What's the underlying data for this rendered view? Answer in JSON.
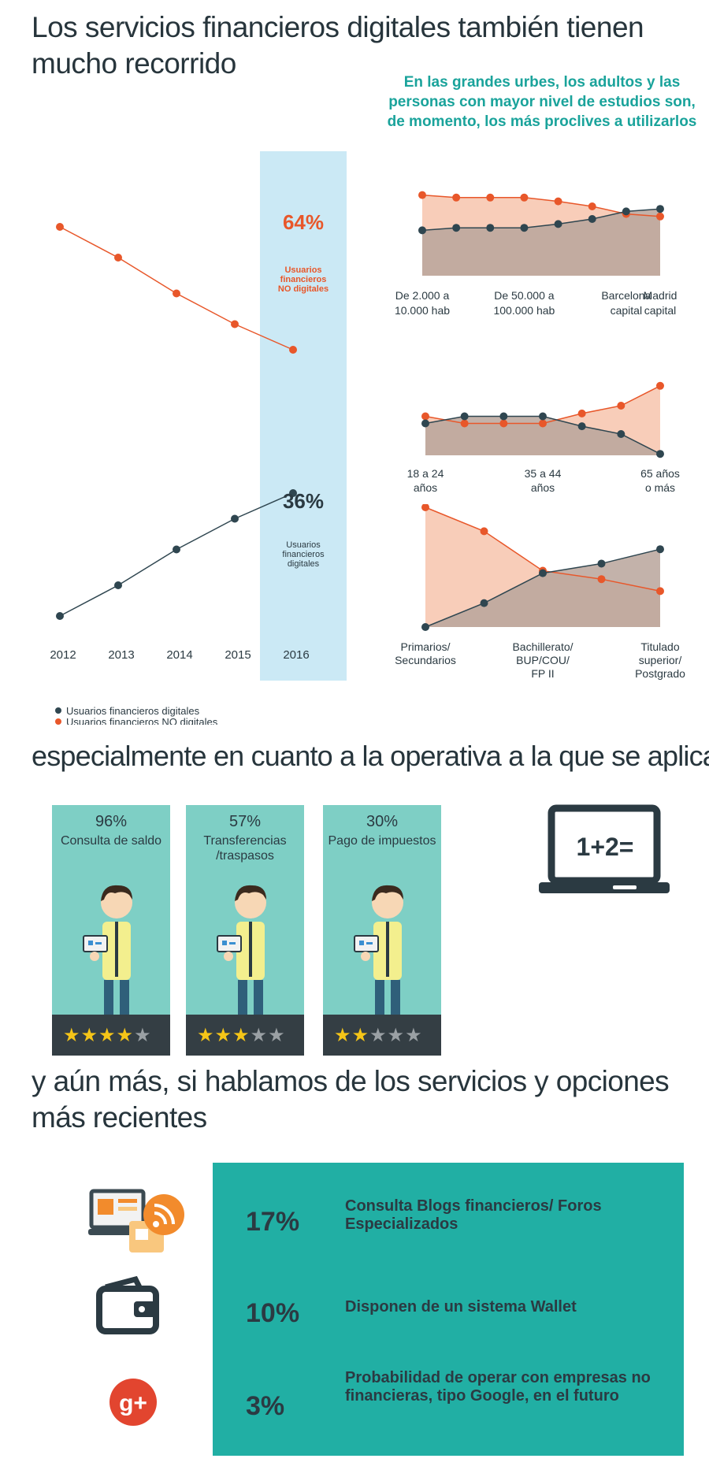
{
  "title": "Los servicios financieros digitales también tienen mucho recorrido",
  "subhead": "En las grandes urbes, los adultos y las personas con mayor nivel de estudios son, de momento, los más proclives a utilizarlos",
  "colors": {
    "digital": "#2f4650",
    "non_digital": "#e8572a",
    "highlight": "#cbe9f5",
    "teal": "#21afa4",
    "card": "#7ecfc5"
  },
  "chart_data": [
    {
      "type": "line",
      "categories": [
        "2012",
        "2013",
        "2014",
        "2015",
        "2016"
      ],
      "ylim": [
        0,
        100
      ],
      "series": [
        {
          "name": "Usuarios financieros digitales",
          "values": [
            12,
            18,
            25,
            31,
            36
          ]
        },
        {
          "name": "Usuarios financieros NO digitales",
          "values": [
            88,
            82,
            75,
            69,
            64
          ]
        }
      ],
      "annotations": [
        {
          "value": "64%",
          "label": "Usuarios financieros NO digitales"
        },
        {
          "value": "36%",
          "label": "Usuarios financieros digitales"
        }
      ],
      "legend": [
        "Usuarios financieros digitales",
        "Usuarios financieros NO digitales"
      ]
    },
    {
      "type": "area",
      "x_labels": [
        "De 2.000 a 10.000 hab",
        "De 50.000 a 100.000 hab",
        "Barcelona capital",
        "Madrid capital"
      ],
      "x_label_positions": [
        0,
        3,
        6,
        7
      ],
      "ylim": [
        0,
        100
      ],
      "series": [
        {
          "name": "Usuarios financieros digitales",
          "values": [
            36,
            38,
            38,
            38,
            41,
            45,
            51,
            53
          ]
        },
        {
          "name": "Usuarios financieros NO digitales",
          "values": [
            64,
            62,
            62,
            62,
            59,
            55,
            49,
            47
          ]
        }
      ]
    },
    {
      "type": "area",
      "x_labels": [
        "18 a 24 años",
        "35 a 44 años",
        "65 años o más"
      ],
      "x_label_positions": [
        0,
        3,
        7
      ],
      "ylim": [
        0,
        100
      ],
      "series": [
        {
          "name": "Usuarios financieros digitales",
          "values": [
            45,
            55,
            55,
            55,
            41,
            30,
            2
          ]
        },
        {
          "name": "Usuarios financieros NO digitales",
          "values": [
            55,
            45,
            45,
            45,
            59,
            70,
            98
          ]
        }
      ]
    },
    {
      "type": "area",
      "x_labels": [
        "Primarios/ Secundarios",
        "Bachillerato/ BUP/COU/ FP II",
        "Titulado superior/ Postgrado"
      ],
      "x_label_positions": [
        0,
        2,
        4
      ],
      "ylim": [
        0,
        100
      ],
      "series": [
        {
          "name": "Usuarios financieros digitales",
          "values": [
            0,
            20,
            45,
            53,
            65
          ]
        },
        {
          "name": "Usuarios financieros NO digitales",
          "values": [
            100,
            80,
            47,
            40,
            30
          ]
        }
      ]
    }
  ],
  "section2": {
    "title": "especialmente en cuanto a la operativa a la que se aplican",
    "cards": [
      {
        "pct": "96%",
        "label": "Consulta de saldo",
        "stars": 4
      },
      {
        "pct": "57%",
        "label": "Transferencias /traspasos",
        "stars": 3
      },
      {
        "pct": "30%",
        "label": "Pago de impuestos",
        "stars": 2
      }
    ],
    "laptop_text": "1+2="
  },
  "section3": {
    "title": "y aún más, si hablamos de los servicios y opciones más recientes",
    "items": [
      {
        "pct": "17%",
        "text": "Consulta Blogs financieros/ Foros Especializados",
        "icon": "blog-rss-icon"
      },
      {
        "pct": "10%",
        "text": "Disponen de un sistema Wallet",
        "icon": "wallet-icon"
      },
      {
        "pct": "3%",
        "text": "Probabilidad de operar con empresas no financieras, tipo Google, en el futuro",
        "icon": "google-plus-icon"
      }
    ],
    "gplus": "g+"
  }
}
